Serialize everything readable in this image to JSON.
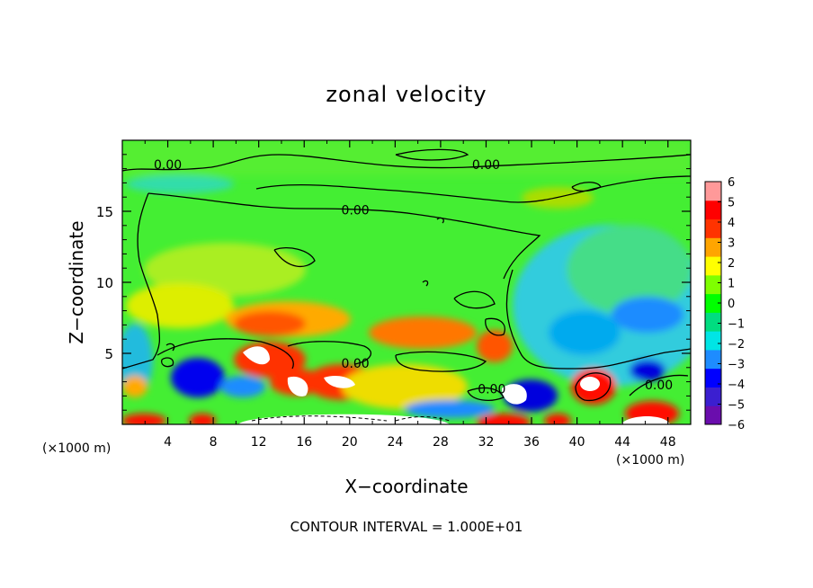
{
  "chart_data": {
    "type": "heatmap",
    "title": "zonal velocity",
    "xlabel": "X−coordinate",
    "ylabel": "Z−coordinate",
    "x_unit_left": "(×1000 m)",
    "x_unit_right": "(×1000 m)",
    "xlim": [
      0,
      50
    ],
    "ylim": [
      0,
      20
    ],
    "x_ticks": [
      4,
      8,
      12,
      16,
      20,
      24,
      28,
      32,
      36,
      40,
      44,
      48
    ],
    "y_ticks": [
      5,
      10,
      15
    ],
    "colorbar": {
      "min": -6,
      "max": 6,
      "ticks": [
        "6",
        "5",
        "4",
        "3",
        "2",
        "1",
        "0",
        "−1",
        "−2",
        "−3",
        "−4",
        "−5",
        "−6"
      ],
      "colors": [
        "#6a0dad",
        "#3b1fd0",
        "#0000ff",
        "#1e8cff",
        "#00e5e5",
        "#00dd80",
        "#00ff00",
        "#7fff00",
        "#ffff00",
        "#ffa500",
        "#ff3300",
        "#ff0000",
        "#ff9999"
      ]
    },
    "contour_labels": [
      {
        "text": "0.00",
        "x": 4,
        "z": 18.3
      },
      {
        "text": "0.00",
        "x": 32,
        "z": 18.3
      },
      {
        "text": "0.00",
        "x": 20.5,
        "z": 15.1
      },
      {
        "text": "0.00",
        "x": 20.5,
        "z": 4.3
      },
      {
        "text": "0.00",
        "x": 32.5,
        "z": 2.5
      },
      {
        "text": "0.00",
        "x": 47.2,
        "z": 2.8
      }
    ],
    "annotation": "CONTOUR INTERVAL = 1.000E+01"
  }
}
